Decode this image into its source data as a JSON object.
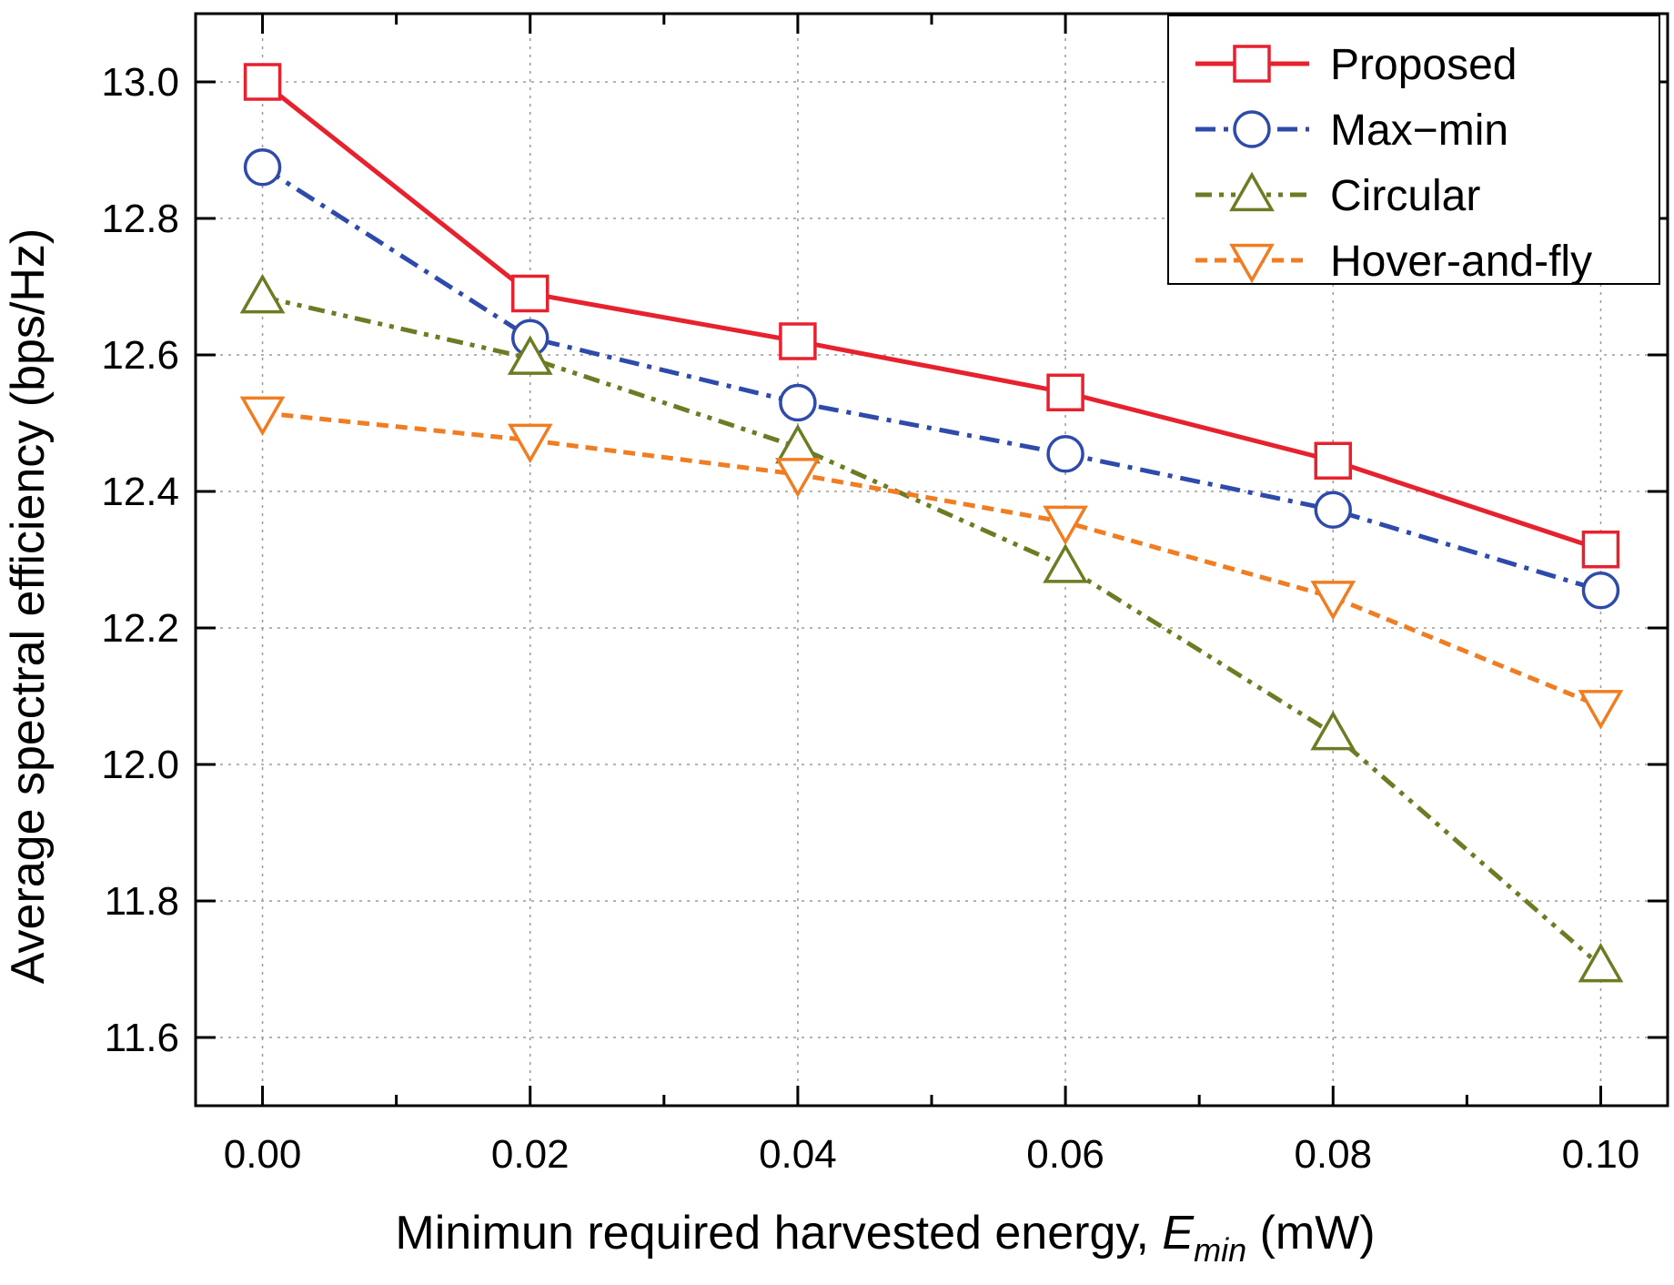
{
  "chart_data": {
    "type": "line",
    "title": "",
    "xlabel": "Minimun required harvested energy, ",
    "xlabel_symbol": "E",
    "xlabel_subscript": "min",
    "xlabel_unit": " (mW)",
    "ylabel": "Average spectral efficiency (bps/Hz)",
    "x": [
      0.0,
      0.02,
      0.04,
      0.06,
      0.08,
      0.1
    ],
    "xlim": [
      -0.005,
      0.105
    ],
    "ylim": [
      11.5,
      13.1
    ],
    "xticks": [
      0.0,
      0.02,
      0.04,
      0.06,
      0.08,
      0.1
    ],
    "xtick_labels": [
      "0.00",
      "0.02",
      "0.04",
      "0.06",
      "0.08",
      "0.10"
    ],
    "yticks": [
      11.6,
      11.8,
      12.0,
      12.2,
      12.4,
      12.6,
      12.8,
      13.0
    ],
    "ytick_labels": [
      "11.6",
      "11.8",
      "12.0",
      "12.2",
      "12.4",
      "12.6",
      "12.8",
      "13.0"
    ],
    "grid": true,
    "legend_position": "top-right",
    "series": [
      {
        "name": "Proposed",
        "color": "#e8212e",
        "marker": "square",
        "dash": "solid",
        "values": [
          13.0,
          12.69,
          12.62,
          12.545,
          12.445,
          12.315
        ]
      },
      {
        "name": "Max−min",
        "color": "#2e4bab",
        "marker": "circle",
        "dash": "dashdot",
        "values": [
          12.875,
          12.625,
          12.53,
          12.455,
          12.373,
          12.255
        ]
      },
      {
        "name": "Circular",
        "color": "#6b7d23",
        "marker": "triangle-up",
        "dash": "dashdotdot",
        "values": [
          12.685,
          12.595,
          12.465,
          12.29,
          12.045,
          11.705
        ]
      },
      {
        "name": "Hover-and-fly",
        "color": "#f07d22",
        "marker": "triangle-down",
        "dash": "dashed",
        "values": [
          12.515,
          12.475,
          12.425,
          12.355,
          12.245,
          12.085
        ]
      }
    ]
  }
}
